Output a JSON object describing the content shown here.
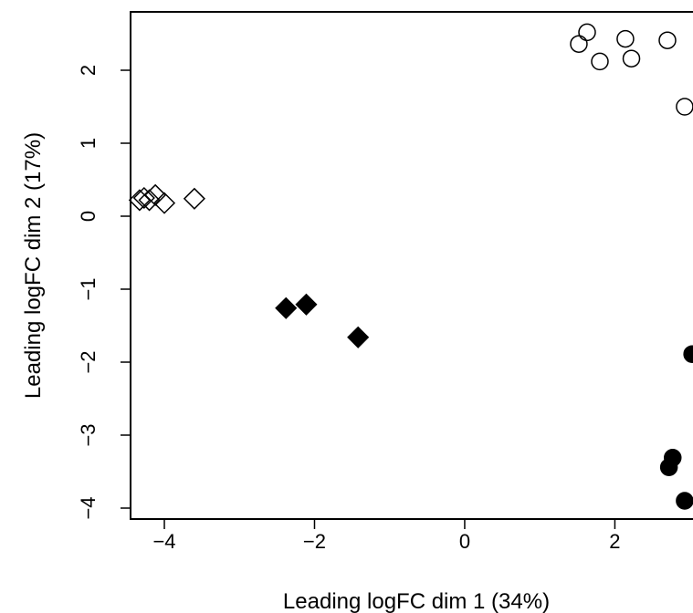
{
  "chart_data": {
    "type": "scatter",
    "xlabel": "Leading logFC dim 1 (34%)",
    "ylabel": "Leading logFC dim 2 (17%)",
    "xlim": [
      -4.45,
      3.15
    ],
    "ylim": [
      -4.15,
      2.8
    ],
    "x_ticks": [
      -4,
      -2,
      0,
      2
    ],
    "y_ticks": [
      -4,
      -3,
      -2,
      -1,
      0,
      1,
      2
    ],
    "x_tick_labels": [
      "−4",
      "−2",
      "0",
      "2"
    ],
    "y_tick_labels": [
      "−4",
      "−3",
      "−2",
      "−1",
      "0",
      "1",
      "2"
    ],
    "grid": false,
    "legend": "none",
    "series": [
      {
        "marker": "open-circle",
        "color": "#000000",
        "x": [
          1.52,
          1.63,
          1.8,
          2.14,
          2.22,
          2.7,
          2.93
        ],
        "y": [
          2.36,
          2.52,
          2.12,
          2.43,
          2.16,
          2.41,
          1.5
        ]
      },
      {
        "marker": "open-diamond",
        "color": "#000000",
        "x": [
          -4.33,
          -4.27,
          -4.2,
          -4.12,
          -4.0,
          -3.6
        ],
        "y": [
          0.22,
          0.25,
          0.22,
          0.29,
          0.18,
          0.24
        ]
      },
      {
        "marker": "filled-diamond",
        "color": "#000000",
        "x": [
          -2.38,
          -2.11,
          -1.42
        ],
        "y": [
          -1.26,
          -1.21,
          -1.66
        ]
      },
      {
        "marker": "filled-circle",
        "color": "#000000",
        "x": [
          3.03,
          2.77,
          2.72,
          2.93
        ],
        "y": [
          -1.89,
          -3.31,
          -3.44,
          -3.9
        ]
      }
    ]
  }
}
